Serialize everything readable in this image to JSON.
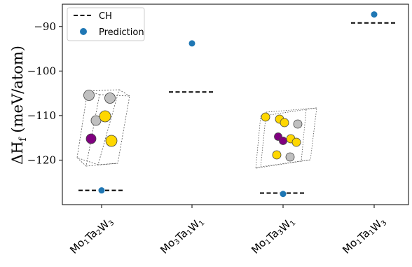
{
  "chart_data": {
    "type": "scatter",
    "ylabel": "ΔH",
    "ylabel_subscript": "f",
    "ylabel_units": "(meV/atom)",
    "ylim": [
      -130,
      -85
    ],
    "yticks": [
      {
        "value": -90,
        "label": "−90"
      },
      {
        "value": -100,
        "label": "−100"
      },
      {
        "value": -110,
        "label": "−110"
      },
      {
        "value": -120,
        "label": "−120"
      }
    ],
    "categories": [
      {
        "parts": [
          [
            "Mo",
            "1"
          ],
          [
            "Ta",
            "2"
          ],
          [
            "W",
            "3"
          ]
        ]
      },
      {
        "parts": [
          [
            "Mo",
            "3"
          ],
          [
            "Ta",
            "1"
          ],
          [
            "W",
            "1"
          ]
        ]
      },
      {
        "parts": [
          [
            "Mo",
            "1"
          ],
          [
            "Ta",
            "3"
          ],
          [
            "W",
            "1"
          ]
        ]
      },
      {
        "parts": [
          [
            "Mo",
            "1"
          ],
          [
            "Ta",
            "1"
          ],
          [
            "W",
            "3"
          ]
        ]
      }
    ],
    "series": [
      {
        "name": "CH",
        "kind": "hline",
        "color": "#000000",
        "values": [
          -126.8,
          -104.7,
          -127.4,
          -89.2
        ]
      },
      {
        "name": "Prediction",
        "kind": "scatter",
        "color": "#1f77b4",
        "values": [
          -126.8,
          -93.8,
          -127.6,
          -87.3
        ]
      }
    ],
    "legend_position": "top-left",
    "grid": false,
    "atom_colors": {
      "Mo": "#800080",
      "Ta": "#ffd700",
      "W": "#c0c0c0"
    }
  }
}
